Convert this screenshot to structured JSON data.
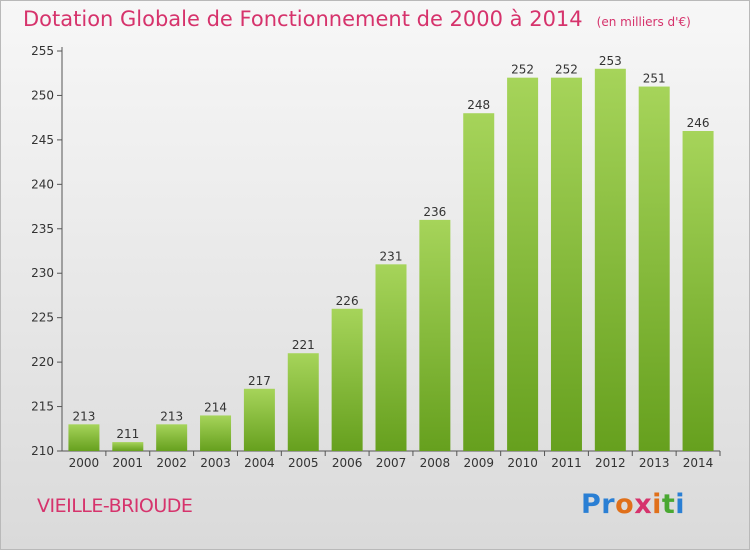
{
  "header": {
    "title": "Dotation Globale de Fonctionnement de 2000 à 2014",
    "unit": "(en milliers d'€)"
  },
  "footer": {
    "commune": "VIEILLE-BRIOUDE",
    "logo_text": "Proxiti",
    "logo_colors": [
      "#2a7fd4",
      "#2a7fd4",
      "#e0701a",
      "#d6336c",
      "#e0701a",
      "#4aa832",
      "#2a7fd4"
    ]
  },
  "colors": {
    "bar_light": "#a6d45a",
    "bar_dark": "#66a01e",
    "text": "#333333",
    "accent": "#d6336c"
  },
  "chart_data": {
    "type": "bar",
    "categories": [
      "2000",
      "2001",
      "2002",
      "2003",
      "2004",
      "2005",
      "2006",
      "2007",
      "2008",
      "2009",
      "2010",
      "2011",
      "2012",
      "2013",
      "2014"
    ],
    "values": [
      213,
      211,
      213,
      214,
      217,
      221,
      226,
      231,
      236,
      248,
      252,
      252,
      253,
      251,
      246
    ],
    "ylim": [
      210,
      255
    ],
    "yticks": [
      210,
      215,
      220,
      225,
      230,
      235,
      240,
      245,
      250,
      255
    ],
    "grid": false,
    "xlabel": "",
    "ylabel": ""
  }
}
